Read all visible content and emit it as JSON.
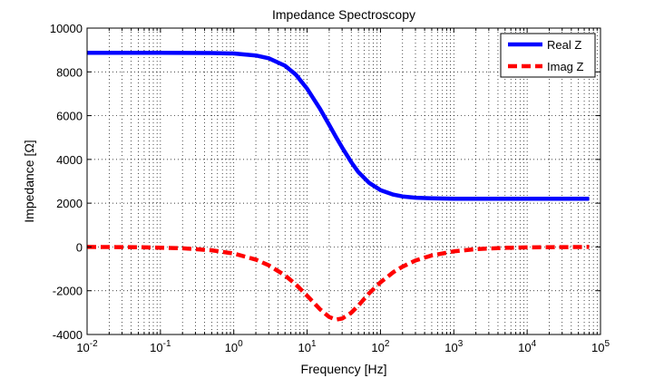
{
  "chart_data": {
    "type": "line",
    "title": "Impedance Spectroscopy",
    "xlabel": "Frequency  [Hz]",
    "ylabel": "Impedance  [Ω]",
    "xscale": "log",
    "xlim": [
      0.01,
      100000
    ],
    "ylim": [
      -4000,
      10000
    ],
    "grid": true,
    "legend_position": "top-right",
    "x_ticks": [
      {
        "value": 0.01,
        "base": "10",
        "exp": "-2"
      },
      {
        "value": 0.1,
        "base": "10",
        "exp": "-1"
      },
      {
        "value": 1,
        "base": "10",
        "exp": "0"
      },
      {
        "value": 10,
        "base": "10",
        "exp": "1"
      },
      {
        "value": 100,
        "base": "10",
        "exp": "2"
      },
      {
        "value": 1000,
        "base": "10",
        "exp": "3"
      },
      {
        "value": 10000,
        "base": "10",
        "exp": "4"
      },
      {
        "value": 100000,
        "base": "10",
        "exp": "5"
      }
    ],
    "y_ticks": [
      {
        "value": 10000,
        "label": "10000"
      },
      {
        "value": 8000,
        "label": "8000"
      },
      {
        "value": 6000,
        "label": "6000"
      },
      {
        "value": 4000,
        "label": "4000"
      },
      {
        "value": 2000,
        "label": "2000"
      },
      {
        "value": 0,
        "label": "0"
      },
      {
        "value": -2000,
        "label": "-2000"
      },
      {
        "value": -4000,
        "label": "-4000"
      }
    ],
    "series": [
      {
        "name": "Real Z",
        "color": "#0000ff",
        "dash": "solid",
        "x": [
          0.01,
          0.1,
          0.5,
          1,
          2,
          3,
          5,
          7,
          10,
          15,
          20,
          25,
          30,
          40,
          50,
          70,
          100,
          150,
          200,
          300,
          500,
          1000,
          10000,
          70000
        ],
        "y": [
          8870,
          8870,
          8860,
          8840,
          8750,
          8620,
          8280,
          7880,
          7230,
          6310,
          5580,
          5000,
          4540,
          3870,
          3420,
          2930,
          2600,
          2390,
          2310,
          2250,
          2220,
          2200,
          2200,
          2200
        ]
      },
      {
        "name": "Imag Z",
        "color": "#ff0000",
        "dash": "dashed",
        "x": [
          0.01,
          0.05,
          0.1,
          0.2,
          0.5,
          1,
          2,
          3,
          5,
          7,
          10,
          15,
          20,
          25,
          30,
          40,
          50,
          70,
          100,
          150,
          200,
          300,
          500,
          1000,
          2000,
          5000,
          10000,
          70000
        ],
        "y": [
          0,
          -10,
          -30,
          -60,
          -150,
          -300,
          -580,
          -840,
          -1300,
          -1710,
          -2230,
          -2850,
          -3200,
          -3320,
          -3270,
          -3000,
          -2680,
          -2120,
          -1620,
          -1150,
          -900,
          -620,
          -390,
          -200,
          -100,
          -40,
          -20,
          0
        ]
      }
    ]
  }
}
